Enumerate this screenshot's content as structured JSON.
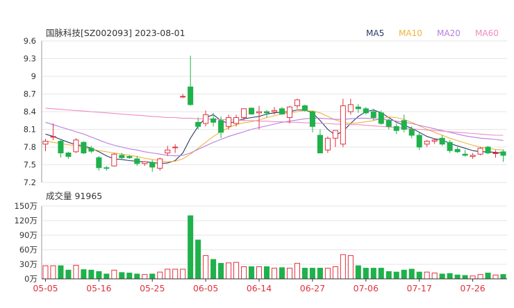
{
  "title": "国脉科技[SZ002093] 2023-08-01",
  "legend": [
    {
      "label": "MA5",
      "color": "#2b3a67"
    },
    {
      "label": "MA10",
      "color": "#f0b43c"
    },
    {
      "label": "MA20",
      "color": "#b77de0"
    },
    {
      "label": "MA60",
      "color": "#f08cc0"
    }
  ],
  "colors": {
    "up": "#e0303c",
    "down": "#1fb14b",
    "grid": "#e6e6e6",
    "axis": "#333333"
  },
  "chart_data": [
    {
      "type": "candlestick",
      "title": "国脉科技[SZ002093] 2023-08-01",
      "ylim": [
        7.2,
        9.6
      ],
      "yticks": [
        "9.6",
        "9.3",
        "9",
        "8.7",
        "8.4",
        "8.1",
        "7.8",
        "7.5",
        "7.2"
      ],
      "dates": [
        "05-05",
        "05-08",
        "05-09",
        "05-10",
        "05-11",
        "05-12",
        "05-15",
        "05-16",
        "05-17",
        "05-18",
        "05-19",
        "05-22",
        "05-23",
        "05-24",
        "05-25",
        "05-26",
        "05-29",
        "05-30",
        "05-31",
        "06-01",
        "06-02",
        "06-05",
        "06-06",
        "06-07",
        "06-08",
        "06-09",
        "06-12",
        "06-13",
        "06-14",
        "06-15",
        "06-16",
        "06-19",
        "06-20",
        "06-21",
        "06-26",
        "06-27",
        "06-28",
        "06-29",
        "06-30",
        "07-03",
        "07-04",
        "07-05",
        "07-06",
        "07-07",
        "07-10",
        "07-11",
        "07-12",
        "07-13",
        "07-14",
        "07-17",
        "07-18",
        "07-19",
        "07-20",
        "07-21",
        "07-24",
        "07-25",
        "07-26",
        "07-27",
        "07-28",
        "07-31",
        "08-01"
      ],
      "xtick_labels": [
        {
          "index": 0,
          "label": "05-05"
        },
        {
          "index": 7,
          "label": "05-16"
        },
        {
          "index": 14,
          "label": "05-25"
        },
        {
          "index": 21,
          "label": "06-05"
        },
        {
          "index": 28,
          "label": "06-14"
        },
        {
          "index": 35,
          "label": "06-27"
        },
        {
          "index": 42,
          "label": "07-06"
        },
        {
          "index": 49,
          "label": "07-17"
        },
        {
          "index": 56,
          "label": "07-26"
        }
      ],
      "ohlc": [
        [
          7.85,
          7.94,
          7.73,
          7.9
        ],
        [
          7.98,
          8.2,
          7.92,
          7.98
        ],
        [
          7.9,
          7.92,
          7.62,
          7.7
        ],
        [
          7.7,
          7.72,
          7.6,
          7.64
        ],
        [
          7.72,
          7.95,
          7.7,
          7.92
        ],
        [
          7.88,
          7.9,
          7.68,
          7.7
        ],
        [
          7.78,
          7.82,
          7.7,
          7.73
        ],
        [
          7.62,
          7.65,
          7.4,
          7.45
        ],
        [
          7.45,
          7.48,
          7.4,
          7.44
        ],
        [
          7.48,
          7.7,
          7.47,
          7.68
        ],
        [
          7.66,
          7.7,
          7.6,
          7.62
        ],
        [
          7.64,
          7.66,
          7.6,
          7.62
        ],
        [
          7.6,
          7.65,
          7.48,
          7.52
        ],
        [
          7.52,
          7.56,
          7.48,
          7.55
        ],
        [
          7.54,
          7.58,
          7.38,
          7.46
        ],
        [
          7.44,
          7.62,
          7.4,
          7.6
        ],
        [
          7.7,
          7.82,
          7.65,
          7.75
        ],
        [
          7.8,
          7.85,
          7.7,
          7.8
        ],
        [
          8.65,
          8.7,
          8.63,
          8.66
        ],
        [
          8.82,
          9.35,
          8.5,
          8.52
        ],
        [
          8.22,
          8.3,
          8.1,
          8.15
        ],
        [
          8.2,
          8.42,
          8.15,
          8.35
        ],
        [
          8.28,
          8.38,
          8.15,
          8.22
        ],
        [
          8.25,
          8.32,
          7.95,
          8.05
        ],
        [
          8.15,
          8.35,
          8.1,
          8.3
        ],
        [
          8.2,
          8.35,
          8.15,
          8.3
        ],
        [
          8.3,
          8.45,
          8.25,
          8.45
        ],
        [
          8.46,
          8.47,
          8.35,
          8.36
        ],
        [
          8.38,
          8.5,
          8.1,
          8.4
        ],
        [
          8.4,
          8.43,
          8.3,
          8.38
        ],
        [
          8.4,
          8.48,
          8.35,
          8.42
        ],
        [
          8.45,
          8.48,
          8.35,
          8.36
        ],
        [
          8.3,
          8.5,
          8.2,
          8.48
        ],
        [
          8.5,
          8.62,
          8.45,
          8.6
        ],
        [
          8.5,
          8.52,
          8.4,
          8.42
        ],
        [
          8.4,
          8.42,
          8.05,
          8.15
        ],
        [
          8.0,
          8.1,
          7.7,
          7.7
        ],
        [
          7.75,
          7.98,
          7.7,
          7.95
        ],
        [
          7.95,
          8.08,
          7.8,
          8.08
        ],
        [
          7.85,
          8.62,
          7.8,
          8.5
        ],
        [
          8.4,
          8.62,
          8.35,
          8.52
        ],
        [
          8.48,
          8.53,
          8.38,
          8.45
        ],
        [
          8.45,
          8.48,
          8.35,
          8.38
        ],
        [
          8.4,
          8.45,
          8.25,
          8.3
        ],
        [
          8.38,
          8.42,
          8.18,
          8.2
        ],
        [
          8.25,
          8.28,
          8.1,
          8.15
        ],
        [
          8.15,
          8.2,
          8.02,
          8.08
        ],
        [
          8.25,
          8.35,
          8.05,
          8.1
        ],
        [
          8.1,
          8.15,
          7.95,
          8.0
        ],
        [
          8.0,
          8.05,
          7.75,
          7.8
        ],
        [
          7.85,
          7.92,
          7.8,
          7.9
        ],
        [
          7.9,
          7.95,
          7.85,
          7.92
        ],
        [
          7.95,
          8.0,
          7.82,
          7.85
        ],
        [
          7.88,
          7.92,
          7.7,
          7.74
        ],
        [
          7.76,
          7.8,
          7.7,
          7.72
        ],
        [
          7.68,
          7.75,
          7.64,
          7.66
        ],
        [
          7.64,
          7.7,
          7.6,
          7.66
        ],
        [
          7.68,
          7.8,
          7.66,
          7.78
        ],
        [
          7.8,
          7.82,
          7.68,
          7.7
        ],
        [
          7.7,
          7.75,
          7.62,
          7.7
        ],
        [
          7.72,
          7.76,
          7.55,
          7.66
        ]
      ],
      "ma_series": [
        {
          "name": "MA5",
          "values": [
            8.02,
            7.98,
            7.93,
            7.88,
            7.84,
            7.82,
            7.78,
            7.72,
            7.65,
            7.6,
            7.59,
            7.57,
            7.56,
            7.55,
            7.54,
            7.52,
            7.53,
            7.57,
            7.7,
            7.95,
            8.15,
            8.3,
            8.35,
            8.25,
            8.2,
            8.24,
            8.28,
            8.3,
            8.32,
            8.36,
            8.38,
            8.39,
            8.4,
            8.43,
            8.43,
            8.38,
            8.25,
            8.1,
            8.0,
            8.07,
            8.2,
            8.32,
            8.4,
            8.43,
            8.38,
            8.3,
            8.22,
            8.17,
            8.12,
            8.05,
            7.98,
            7.94,
            7.92,
            7.86,
            7.82,
            7.78,
            7.74,
            7.72,
            7.72,
            7.71,
            7.7
          ]
        },
        {
          "name": "MA10",
          "values": [
            7.9,
            7.88,
            7.86,
            7.84,
            7.82,
            7.79,
            7.77,
            7.74,
            7.72,
            7.7,
            7.68,
            7.66,
            7.64,
            7.61,
            7.59,
            7.57,
            7.55,
            7.56,
            7.6,
            7.68,
            7.78,
            7.88,
            7.98,
            8.06,
            8.13,
            8.18,
            8.21,
            8.23,
            8.26,
            8.3,
            8.33,
            8.36,
            8.38,
            8.4,
            8.42,
            8.41,
            8.38,
            8.32,
            8.26,
            8.22,
            8.2,
            8.21,
            8.23,
            8.25,
            8.28,
            8.31,
            8.3,
            8.27,
            8.22,
            8.16,
            8.1,
            8.05,
            8.0,
            7.95,
            7.91,
            7.87,
            7.83,
            7.8,
            7.78,
            7.76,
            7.75
          ]
        },
        {
          "name": "MA20",
          "values": [
            8.22,
            8.18,
            8.14,
            8.1,
            8.06,
            8.02,
            7.97,
            7.92,
            7.87,
            7.83,
            7.8,
            7.77,
            7.75,
            7.72,
            7.7,
            7.68,
            7.66,
            7.65,
            7.66,
            7.7,
            7.76,
            7.82,
            7.88,
            7.93,
            7.98,
            8.02,
            8.06,
            8.1,
            8.13,
            8.16,
            8.19,
            8.22,
            8.24,
            8.26,
            8.28,
            8.29,
            8.29,
            8.28,
            8.27,
            8.27,
            8.28,
            8.29,
            8.29,
            8.28,
            8.27,
            8.26,
            8.24,
            8.22,
            8.2,
            8.17,
            8.14,
            8.11,
            8.08,
            8.05,
            8.02,
            7.99,
            7.97,
            7.95,
            7.94,
            7.93,
            7.91
          ]
        },
        {
          "name": "MA60",
          "values": [
            8.46,
            8.45,
            8.44,
            8.43,
            8.42,
            8.41,
            8.4,
            8.39,
            8.38,
            8.37,
            8.36,
            8.35,
            8.34,
            8.33,
            8.32,
            8.31,
            8.3,
            8.3,
            8.29,
            8.29,
            8.28,
            8.28,
            8.27,
            8.27,
            8.26,
            8.26,
            8.25,
            8.25,
            8.24,
            8.24,
            8.23,
            8.23,
            8.22,
            8.22,
            8.21,
            8.21,
            8.2,
            8.2,
            8.19,
            8.19,
            8.18,
            8.18,
            8.17,
            8.16,
            8.15,
            8.14,
            8.13,
            8.12,
            8.11,
            8.1,
            8.09,
            8.08,
            8.07,
            8.06,
            8.05,
            8.04,
            8.03,
            8.02,
            8.01,
            8.0,
            8.0
          ]
        }
      ]
    },
    {
      "type": "bar",
      "title": "成交量 91965",
      "ylim": [
        0,
        150
      ],
      "yticks": [
        "150万",
        "120万",
        "90万",
        "60万",
        "30万",
        "0万"
      ],
      "ylabel": "万",
      "volumes": [
        27,
        27,
        27,
        18,
        28,
        19,
        18,
        15,
        10,
        18,
        13,
        12,
        10,
        9,
        10,
        14,
        20,
        20,
        20,
        130,
        80,
        48,
        40,
        32,
        33,
        34,
        25,
        25,
        25,
        25,
        22,
        23,
        22,
        32,
        22,
        22,
        22,
        22,
        25,
        50,
        48,
        27,
        22,
        22,
        22,
        15,
        14,
        18,
        20,
        14,
        14,
        12,
        10,
        11,
        8,
        7,
        6,
        9,
        12,
        8,
        9
      ]
    }
  ]
}
